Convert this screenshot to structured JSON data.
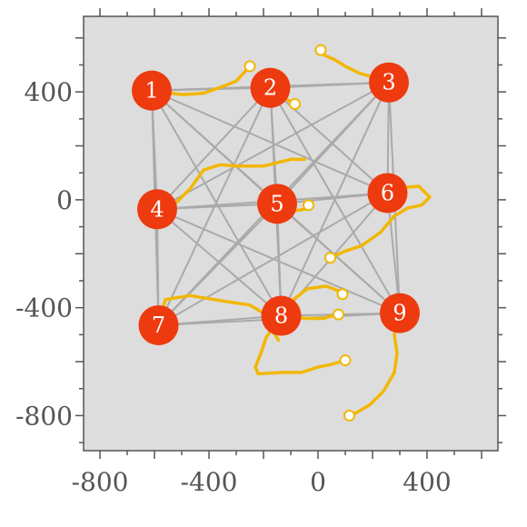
{
  "chart_data": {
    "type": "scatter",
    "title": "",
    "xlabel": "",
    "ylabel": "",
    "xlim": [
      -860,
      660
    ],
    "ylim": [
      -930,
      680
    ],
    "x_ticks": [
      -800,
      -400,
      0,
      400
    ],
    "y_ticks": [
      400,
      0,
      -400,
      -800
    ],
    "x_tick_labels": [
      "-800",
      "-400",
      "0",
      "400"
    ],
    "y_tick_labels": [
      "400",
      "0",
      "-400",
      "-800"
    ],
    "grid": false,
    "colors": {
      "background": "#dddddd",
      "node": "#ee3a0f",
      "edge": "#aaaaaa",
      "trajectory": "#f2b705",
      "axis": "#555555"
    },
    "nodes": [
      {
        "label": "1",
        "x": -610,
        "y": 405
      },
      {
        "label": "2",
        "x": -175,
        "y": 415
      },
      {
        "label": "3",
        "x": 260,
        "y": 435
      },
      {
        "label": "4",
        "x": -590,
        "y": -35
      },
      {
        "label": "5",
        "x": -150,
        "y": -15
      },
      {
        "label": "6",
        "x": 255,
        "y": 25
      },
      {
        "label": "7",
        "x": -585,
        "y": -465
      },
      {
        "label": "8",
        "x": -135,
        "y": -430
      },
      {
        "label": "9",
        "x": 300,
        "y": -420
      }
    ],
    "edges": [
      [
        "1",
        "2"
      ],
      [
        "1",
        "3"
      ],
      [
        "1",
        "4"
      ],
      [
        "1",
        "5"
      ],
      [
        "1",
        "6"
      ],
      [
        "1",
        "7"
      ],
      [
        "1",
        "8"
      ],
      [
        "1",
        "9"
      ],
      [
        "2",
        "3"
      ],
      [
        "2",
        "4"
      ],
      [
        "2",
        "5"
      ],
      [
        "2",
        "6"
      ],
      [
        "2",
        "7"
      ],
      [
        "2",
        "8"
      ],
      [
        "2",
        "9"
      ],
      [
        "3",
        "4"
      ],
      [
        "3",
        "5"
      ],
      [
        "3",
        "6"
      ],
      [
        "3",
        "7"
      ],
      [
        "3",
        "8"
      ],
      [
        "3",
        "9"
      ],
      [
        "4",
        "5"
      ],
      [
        "4",
        "6"
      ],
      [
        "4",
        "7"
      ],
      [
        "4",
        "8"
      ],
      [
        "4",
        "9"
      ],
      [
        "5",
        "6"
      ],
      [
        "5",
        "7"
      ],
      [
        "5",
        "8"
      ],
      [
        "5",
        "9"
      ],
      [
        "6",
        "7"
      ],
      [
        "6",
        "8"
      ],
      [
        "6",
        "9"
      ],
      [
        "7",
        "8"
      ],
      [
        "7",
        "9"
      ],
      [
        "8",
        "9"
      ]
    ],
    "trajectories": [
      {
        "points": [
          [
            -610,
            405
          ],
          [
            -500,
            390
          ],
          [
            -420,
            395
          ],
          [
            -350,
            420
          ],
          [
            -300,
            440
          ],
          [
            -250,
            495
          ]
        ],
        "end_marker": true
      },
      {
        "points": [
          [
            -175,
            415
          ],
          [
            -150,
            390
          ],
          [
            -110,
            370
          ],
          [
            -85,
            355
          ]
        ],
        "end_marker": true
      },
      {
        "points": [
          [
            260,
            435
          ],
          [
            200,
            455
          ],
          [
            150,
            470
          ],
          [
            100,
            495
          ],
          [
            60,
            520
          ],
          [
            25,
            535
          ],
          [
            10,
            555
          ]
        ],
        "end_marker": true
      },
      {
        "points": [
          [
            -590,
            -35
          ],
          [
            -520,
            -10
          ],
          [
            -470,
            40
          ],
          [
            -420,
            110
          ],
          [
            -360,
            130
          ],
          [
            -300,
            125
          ],
          [
            -200,
            125
          ],
          [
            -140,
            140
          ],
          [
            -100,
            150
          ],
          [
            -50,
            150
          ]
        ],
        "end_marker": false
      },
      {
        "points": [
          [
            -150,
            -15
          ],
          [
            -110,
            -30
          ],
          [
            -80,
            -40
          ],
          [
            -50,
            -35
          ],
          [
            -35,
            -20
          ]
        ],
        "end_marker": true
      },
      {
        "points": [
          [
            255,
            25
          ],
          [
            310,
            45
          ],
          [
            370,
            50
          ],
          [
            410,
            10
          ],
          [
            380,
            -20
          ],
          [
            330,
            -30
          ],
          [
            280,
            -60
          ],
          [
            230,
            -120
          ],
          [
            160,
            -170
          ],
          [
            100,
            -190
          ],
          [
            45,
            -215
          ]
        ],
        "end_marker": true
      },
      {
        "points": [
          [
            -585,
            -465
          ],
          [
            -560,
            -370
          ],
          [
            -470,
            -355
          ],
          [
            -350,
            -375
          ],
          [
            -250,
            -390
          ],
          [
            -200,
            -420
          ],
          [
            -170,
            -480
          ],
          [
            -145,
            -520
          ]
        ],
        "end_marker": false
      },
      {
        "points": [
          [
            -135,
            -430
          ],
          [
            -190,
            -510
          ],
          [
            -210,
            -570
          ],
          [
            -230,
            -620
          ],
          [
            -220,
            -645
          ],
          [
            -130,
            -640
          ],
          [
            -60,
            -640
          ],
          [
            0,
            -620
          ],
          [
            50,
            -610
          ],
          [
            100,
            -595
          ]
        ],
        "end_marker": true
      },
      {
        "points": [
          [
            -135,
            -430
          ],
          [
            -40,
            -440
          ],
          [
            20,
            -440
          ],
          [
            50,
            -430
          ],
          [
            75,
            -425
          ]
        ],
        "end_marker": true
      },
      {
        "points": [
          [
            -135,
            -430
          ],
          [
            -90,
            -370
          ],
          [
            -40,
            -330
          ],
          [
            30,
            -320
          ],
          [
            80,
            -340
          ],
          [
            90,
            -350
          ]
        ],
        "end_marker": true
      },
      {
        "points": [
          [
            300,
            -420
          ],
          [
            280,
            -500
          ],
          [
            290,
            -570
          ],
          [
            280,
            -640
          ],
          [
            240,
            -710
          ],
          [
            190,
            -760
          ],
          [
            140,
            -790
          ],
          [
            115,
            -800
          ]
        ],
        "end_marker": true
      }
    ]
  }
}
